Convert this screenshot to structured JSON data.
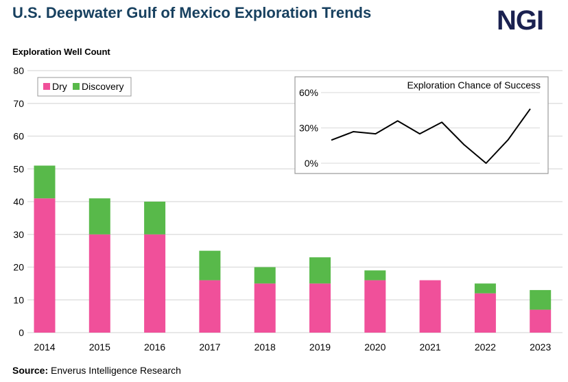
{
  "header": {
    "title": "U.S. Deepwater Gulf of Mexico Exploration Trends",
    "logo": "NGI"
  },
  "footer": {
    "source_label": "Source:",
    "source_text": "Enverus Intelligence Research"
  },
  "chart_data": [
    {
      "type": "bar",
      "stacked": true,
      "ylabel": "Exploration Well Count",
      "ylim": [
        0,
        80
      ],
      "yticks": [
        0,
        10,
        20,
        30,
        40,
        50,
        60,
        70,
        80
      ],
      "grid": true,
      "legend": "top-left",
      "categories": [
        "2014",
        "2015",
        "2016",
        "2017",
        "2018",
        "2019",
        "2020",
        "2021",
        "2022",
        "2023"
      ],
      "series": [
        {
          "name": "Dry",
          "color": "#f0509a",
          "values": [
            41,
            30,
            30,
            16,
            15,
            15,
            16,
            16,
            12,
            7
          ]
        },
        {
          "name": "Discovery",
          "color": "#58b94a",
          "values": [
            10,
            11,
            10,
            9,
            5,
            8,
            3,
            0,
            3,
            6
          ]
        }
      ]
    },
    {
      "type": "line",
      "title": "Exploration Chance of Success",
      "ylim": [
        0,
        60
      ],
      "yticks": [
        "0%",
        "30%",
        "60%"
      ],
      "grid": true,
      "x": [
        "2014",
        "2015",
        "2016",
        "2017",
        "2018",
        "2019",
        "2020",
        "2021",
        "2022",
        "2023"
      ],
      "values": [
        19.6,
        26.8,
        25,
        36,
        25,
        34.8,
        15.8,
        0,
        20,
        46.2
      ],
      "color": "#000000"
    }
  ]
}
